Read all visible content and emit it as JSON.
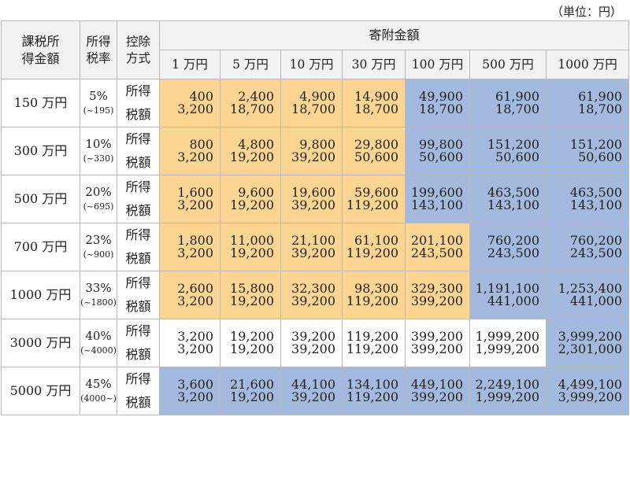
{
  "unit_note": "（単位：円）",
  "header": {
    "income_label_1": "課税所",
    "income_label_2": "得金額",
    "rate_label_1": "所得",
    "rate_label_2": "税率",
    "method_label_1": "控除",
    "method_label_2": "方式",
    "donation_label": "寄附金額",
    "amounts": [
      "1 万円",
      "5 万円",
      "10 万円",
      "30 万円",
      "100 万円",
      "500 万円",
      "1000 万円"
    ]
  },
  "method_names": {
    "income": "所得",
    "tax": "税額"
  },
  "colors": {
    "orange": "#fbd591",
    "blue": "#a4b9de",
    "white": "#ffffff"
  },
  "rows": [
    {
      "income": "150 万円",
      "rate": "5%",
      "range": "(~195)",
      "shotoku": [
        "400",
        "2,400",
        "4,900",
        "14,900",
        "49,900",
        "61,900",
        "61,900"
      ],
      "zeigaku": [
        "3,200",
        "18,700",
        "18,700",
        "18,700",
        "18,700",
        "18,700",
        "18,700"
      ],
      "shotoku_colors": [
        "o",
        "o",
        "o",
        "o",
        "b",
        "b",
        "b"
      ],
      "zeigaku_colors": [
        "o",
        "o",
        "o",
        "o",
        "b",
        "b",
        "b"
      ]
    },
    {
      "income": "300 万円",
      "rate": "10%",
      "range": "(~330)",
      "shotoku": [
        "800",
        "4,800",
        "9,800",
        "29,800",
        "99,800",
        "151,200",
        "151,200"
      ],
      "zeigaku": [
        "3,200",
        "19,200",
        "39,200",
        "50,600",
        "50,600",
        "50,600",
        "50,600"
      ],
      "shotoku_colors": [
        "o",
        "o",
        "o",
        "o",
        "b",
        "b",
        "b"
      ],
      "zeigaku_colors": [
        "o",
        "o",
        "o",
        "o",
        "b",
        "b",
        "b"
      ]
    },
    {
      "income": "500 万円",
      "rate": "20%",
      "range": "(~695)",
      "shotoku": [
        "1,600",
        "9,600",
        "19,600",
        "59,600",
        "199,600",
        "463,500",
        "463,500"
      ],
      "zeigaku": [
        "3,200",
        "19,200",
        "39,200",
        "119,200",
        "143,100",
        "143,100",
        "143,100"
      ],
      "shotoku_colors": [
        "o",
        "o",
        "o",
        "o",
        "b",
        "b",
        "b"
      ],
      "zeigaku_colors": [
        "o",
        "o",
        "o",
        "o",
        "b",
        "b",
        "b"
      ]
    },
    {
      "income": "700 万円",
      "rate": "23%",
      "range": "(~900)",
      "shotoku": [
        "1,800",
        "11,000",
        "21,100",
        "61,100",
        "201,100",
        "760,200",
        "760,200"
      ],
      "zeigaku": [
        "3,200",
        "19,200",
        "39,200",
        "119,200",
        "243,500",
        "243,500",
        "243,500"
      ],
      "shotoku_colors": [
        "o",
        "o",
        "o",
        "o",
        "o",
        "b",
        "b"
      ],
      "zeigaku_colors": [
        "o",
        "o",
        "o",
        "o",
        "o",
        "b",
        "b"
      ]
    },
    {
      "income": "1000 万円",
      "rate": "33%",
      "range": "(~1800)",
      "shotoku": [
        "2,600",
        "15,800",
        "32,300",
        "98,300",
        "329,300",
        "1,191,100",
        "1,253,400"
      ],
      "zeigaku": [
        "3,200",
        "19,200",
        "39,200",
        "119,200",
        "399,200",
        "441,000",
        "441,000"
      ],
      "shotoku_colors": [
        "o",
        "o",
        "o",
        "o",
        "o",
        "b",
        "b"
      ],
      "zeigaku_colors": [
        "o",
        "o",
        "o",
        "o",
        "o",
        "b",
        "b"
      ]
    },
    {
      "income": "3000 万円",
      "rate": "40%",
      "range": "(~4000)",
      "shotoku": [
        "3,200",
        "19,200",
        "39,200",
        "119,200",
        "399,200",
        "1,999,200",
        "3,999,200"
      ],
      "zeigaku": [
        "3,200",
        "19,200",
        "39,200",
        "119,200",
        "399,200",
        "1,999,200",
        "2,301,000"
      ],
      "shotoku_colors": [
        "w",
        "w",
        "w",
        "w",
        "w",
        "w",
        "b"
      ],
      "zeigaku_colors": [
        "w",
        "w",
        "w",
        "w",
        "w",
        "w",
        "b"
      ]
    },
    {
      "income": "5000 万円",
      "rate": "45%",
      "range": "(4000~)",
      "shotoku": [
        "3,600",
        "21,600",
        "44,100",
        "134,100",
        "449,100",
        "2,249,100",
        "4,499,100"
      ],
      "zeigaku": [
        "3,200",
        "19,200",
        "39,200",
        "119,200",
        "399,200",
        "1,999,200",
        "3,999,200"
      ],
      "shotoku_colors": [
        "b",
        "b",
        "b",
        "b",
        "b",
        "b",
        "b"
      ],
      "zeigaku_colors": [
        "b",
        "b",
        "b",
        "b",
        "b",
        "b",
        "b"
      ]
    }
  ]
}
